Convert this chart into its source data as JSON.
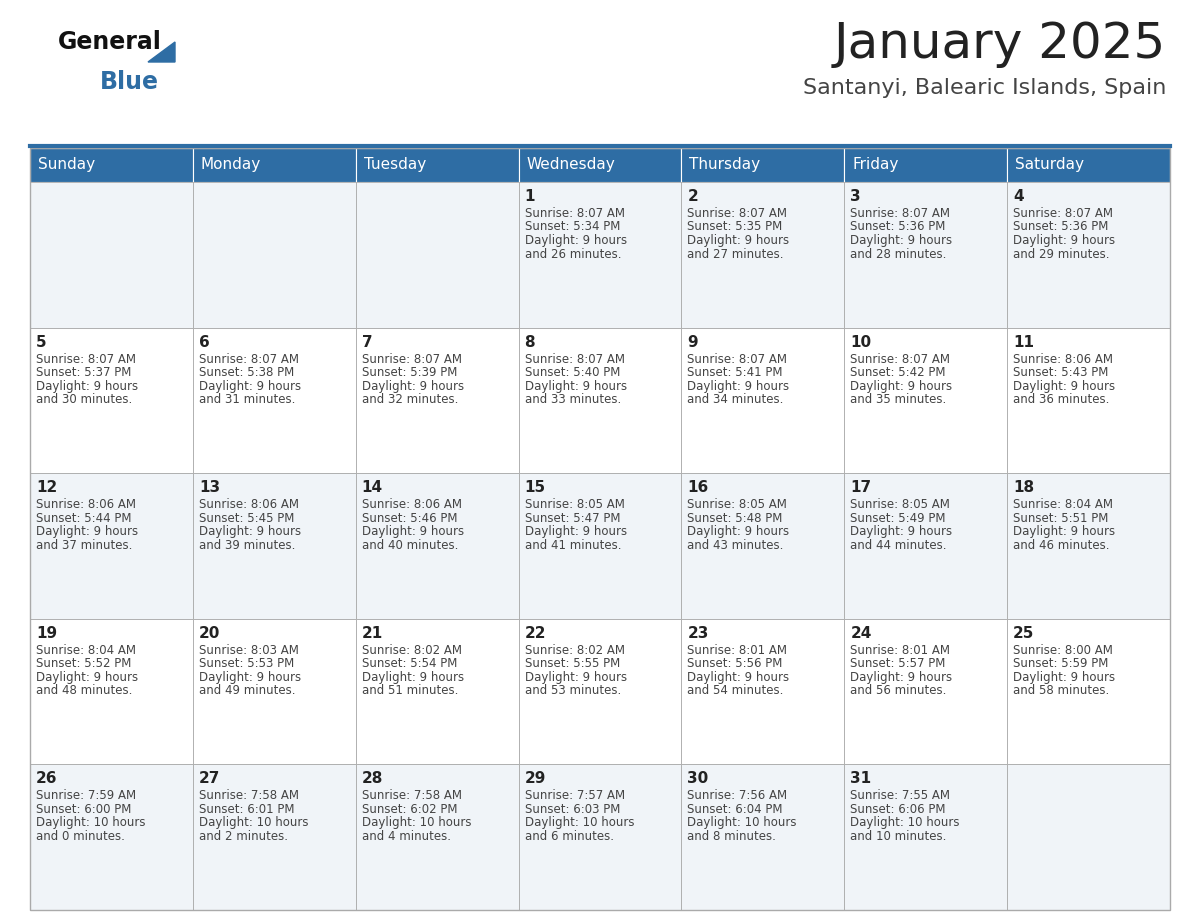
{
  "title": "January 2025",
  "subtitle": "Santanyi, Balearic Islands, Spain",
  "header_bg": "#2E6DA4",
  "header_text": "#FFFFFF",
  "row_bg_odd": "#F0F4F8",
  "row_bg_even": "#FFFFFF",
  "cell_border": "#AAAAAA",
  "day_headers": [
    "Sunday",
    "Monday",
    "Tuesday",
    "Wednesday",
    "Thursday",
    "Friday",
    "Saturday"
  ],
  "title_color": "#222222",
  "subtitle_color": "#444444",
  "day_num_color": "#222222",
  "cell_text_color": "#444444",
  "calendar": [
    [
      {
        "day": "",
        "sunrise": "",
        "sunset": "",
        "daylight": ""
      },
      {
        "day": "",
        "sunrise": "",
        "sunset": "",
        "daylight": ""
      },
      {
        "day": "",
        "sunrise": "",
        "sunset": "",
        "daylight": ""
      },
      {
        "day": "1",
        "sunrise": "8:07 AM",
        "sunset": "5:34 PM",
        "daylight": "9 hours\nand 26 minutes."
      },
      {
        "day": "2",
        "sunrise": "8:07 AM",
        "sunset": "5:35 PM",
        "daylight": "9 hours\nand 27 minutes."
      },
      {
        "day": "3",
        "sunrise": "8:07 AM",
        "sunset": "5:36 PM",
        "daylight": "9 hours\nand 28 minutes."
      },
      {
        "day": "4",
        "sunrise": "8:07 AM",
        "sunset": "5:36 PM",
        "daylight": "9 hours\nand 29 minutes."
      }
    ],
    [
      {
        "day": "5",
        "sunrise": "8:07 AM",
        "sunset": "5:37 PM",
        "daylight": "9 hours\nand 30 minutes."
      },
      {
        "day": "6",
        "sunrise": "8:07 AM",
        "sunset": "5:38 PM",
        "daylight": "9 hours\nand 31 minutes."
      },
      {
        "day": "7",
        "sunrise": "8:07 AM",
        "sunset": "5:39 PM",
        "daylight": "9 hours\nand 32 minutes."
      },
      {
        "day": "8",
        "sunrise": "8:07 AM",
        "sunset": "5:40 PM",
        "daylight": "9 hours\nand 33 minutes."
      },
      {
        "day": "9",
        "sunrise": "8:07 AM",
        "sunset": "5:41 PM",
        "daylight": "9 hours\nand 34 minutes."
      },
      {
        "day": "10",
        "sunrise": "8:07 AM",
        "sunset": "5:42 PM",
        "daylight": "9 hours\nand 35 minutes."
      },
      {
        "day": "11",
        "sunrise": "8:06 AM",
        "sunset": "5:43 PM",
        "daylight": "9 hours\nand 36 minutes."
      }
    ],
    [
      {
        "day": "12",
        "sunrise": "8:06 AM",
        "sunset": "5:44 PM",
        "daylight": "9 hours\nand 37 minutes."
      },
      {
        "day": "13",
        "sunrise": "8:06 AM",
        "sunset": "5:45 PM",
        "daylight": "9 hours\nand 39 minutes."
      },
      {
        "day": "14",
        "sunrise": "8:06 AM",
        "sunset": "5:46 PM",
        "daylight": "9 hours\nand 40 minutes."
      },
      {
        "day": "15",
        "sunrise": "8:05 AM",
        "sunset": "5:47 PM",
        "daylight": "9 hours\nand 41 minutes."
      },
      {
        "day": "16",
        "sunrise": "8:05 AM",
        "sunset": "5:48 PM",
        "daylight": "9 hours\nand 43 minutes."
      },
      {
        "day": "17",
        "sunrise": "8:05 AM",
        "sunset": "5:49 PM",
        "daylight": "9 hours\nand 44 minutes."
      },
      {
        "day": "18",
        "sunrise": "8:04 AM",
        "sunset": "5:51 PM",
        "daylight": "9 hours\nand 46 minutes."
      }
    ],
    [
      {
        "day": "19",
        "sunrise": "8:04 AM",
        "sunset": "5:52 PM",
        "daylight": "9 hours\nand 48 minutes."
      },
      {
        "day": "20",
        "sunrise": "8:03 AM",
        "sunset": "5:53 PM",
        "daylight": "9 hours\nand 49 minutes."
      },
      {
        "day": "21",
        "sunrise": "8:02 AM",
        "sunset": "5:54 PM",
        "daylight": "9 hours\nand 51 minutes."
      },
      {
        "day": "22",
        "sunrise": "8:02 AM",
        "sunset": "5:55 PM",
        "daylight": "9 hours\nand 53 minutes."
      },
      {
        "day": "23",
        "sunrise": "8:01 AM",
        "sunset": "5:56 PM",
        "daylight": "9 hours\nand 54 minutes."
      },
      {
        "day": "24",
        "sunrise": "8:01 AM",
        "sunset": "5:57 PM",
        "daylight": "9 hours\nand 56 minutes."
      },
      {
        "day": "25",
        "sunrise": "8:00 AM",
        "sunset": "5:59 PM",
        "daylight": "9 hours\nand 58 minutes."
      }
    ],
    [
      {
        "day": "26",
        "sunrise": "7:59 AM",
        "sunset": "6:00 PM",
        "daylight": "10 hours\nand 0 minutes."
      },
      {
        "day": "27",
        "sunrise": "7:58 AM",
        "sunset": "6:01 PM",
        "daylight": "10 hours\nand 2 minutes."
      },
      {
        "day": "28",
        "sunrise": "7:58 AM",
        "sunset": "6:02 PM",
        "daylight": "10 hours\nand 4 minutes."
      },
      {
        "day": "29",
        "sunrise": "7:57 AM",
        "sunset": "6:03 PM",
        "daylight": "10 hours\nand 6 minutes."
      },
      {
        "day": "30",
        "sunrise": "7:56 AM",
        "sunset": "6:04 PM",
        "daylight": "10 hours\nand 8 minutes."
      },
      {
        "day": "31",
        "sunrise": "7:55 AM",
        "sunset": "6:06 PM",
        "daylight": "10 hours\nand 10 minutes."
      },
      {
        "day": "",
        "sunrise": "",
        "sunset": "",
        "daylight": ""
      }
    ]
  ]
}
